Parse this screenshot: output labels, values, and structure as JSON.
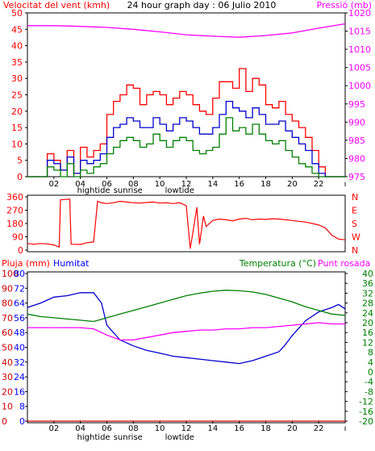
{
  "colors": {
    "wind": "#ff0000",
    "gust": "#cc0000",
    "wind_avg": "#0000cc",
    "wind_low": "#008000",
    "pressure": "#ff00ff",
    "direction": "#ff0000",
    "rain": "#cc0000",
    "humidity": "#0000cc",
    "temperature": "#008000",
    "dewpoint": "#ff00ff",
    "title": "#000000",
    "axis_left1": "#ff0000",
    "axis_right1": "#ff00ff",
    "axis_left3": "#0000ff",
    "axis_right3": "#008000"
  },
  "header": {
    "left": "Velocitat del vent (kmh)",
    "center": "24 hour graph day : 06 Julio 2010",
    "right": "Pressió (mb)"
  },
  "panel3_header": {
    "rain": "Pluja (mm)",
    "humidity": "Humitat",
    "temperature": "Temperatura (°C)",
    "dewpoint": "Punt rosada"
  },
  "chart_data": [
    {
      "type": "line",
      "title": "24 hour graph day : 06 Julio 2010",
      "ylabel": "Velocitat del vent (kmh)",
      "y2label": "Pressió (mb)",
      "xlim": [
        0,
        24
      ],
      "ylim": [
        0,
        50
      ],
      "y2lim": [
        975,
        1020
      ],
      "x_ticks": [
        "02",
        "04",
        "06",
        "08",
        "10",
        "12",
        "14",
        "16",
        "18",
        "20",
        "22"
      ],
      "y_ticks": [
        0,
        5,
        10,
        15,
        20,
        25,
        30,
        35,
        40,
        45,
        50
      ],
      "y2_ticks": [
        975,
        980,
        985,
        990,
        995,
        1000,
        1005,
        1010,
        1015,
        1020
      ],
      "annotations": [
        "hightide",
        "sunrise",
        "lowtide"
      ],
      "grid": false,
      "series": [
        {
          "name": "Pressió (mb)",
          "axis": "right",
          "x": [
            0,
            2,
            4,
            6,
            8,
            10,
            12,
            14,
            16,
            18,
            20,
            22,
            24
          ],
          "values": [
            1016.5,
            1016.5,
            1016.3,
            1016.0,
            1015.5,
            1014.8,
            1014.0,
            1013.6,
            1013.3,
            1013.8,
            1014.5,
            1015.8,
            1017.0
          ]
        },
        {
          "name": "Ràfega",
          "axis": "left",
          "x": [
            0,
            1.2,
            1.5,
            2.0,
            2.5,
            3.0,
            3.5,
            4.0,
            4.5,
            5.0,
            5.5,
            6.0,
            6.5,
            7.0,
            7.5,
            8.0,
            8.5,
            9.0,
            9.5,
            10.0,
            10.5,
            11.0,
            11.5,
            12.0,
            12.5,
            13.0,
            13.5,
            14.0,
            14.5,
            15.0,
            15.5,
            16.0,
            16.5,
            17.0,
            17.5,
            18.0,
            18.5,
            19.0,
            19.5,
            20.0,
            20.5,
            21.0,
            21.5,
            22.0,
            22.5,
            23.0,
            24.0
          ],
          "values": [
            0,
            0,
            7,
            5,
            2,
            8,
            1,
            9,
            6,
            8,
            10,
            19,
            23,
            25,
            28,
            27,
            22,
            25,
            26,
            25,
            22,
            24,
            26,
            25,
            22,
            20,
            19,
            24,
            29,
            29,
            27,
            33,
            26,
            30,
            28,
            22,
            21,
            23,
            19,
            17,
            15,
            12,
            8,
            3,
            0,
            0,
            0
          ]
        },
        {
          "name": "Vent mitjà",
          "axis": "left",
          "x": [
            0,
            1.2,
            1.5,
            2.0,
            2.5,
            3.0,
            3.5,
            4.0,
            4.5,
            5.0,
            5.5,
            6.0,
            6.5,
            7.0,
            7.5,
            8.0,
            8.5,
            9.0,
            9.5,
            10.0,
            10.5,
            11.0,
            11.5,
            12.0,
            12.5,
            13.0,
            13.5,
            14.0,
            14.5,
            15.0,
            15.5,
            16.0,
            16.5,
            17.0,
            17.5,
            18.0,
            18.5,
            19.0,
            19.5,
            20.0,
            20.5,
            21.0,
            21.5,
            22.0,
            22.5,
            23.0,
            24.0
          ],
          "values": [
            0,
            0,
            5,
            4,
            2,
            6,
            1,
            5,
            4,
            5,
            7,
            12,
            15,
            16,
            18,
            17,
            15,
            15,
            18,
            16,
            14,
            16,
            18,
            17,
            15,
            13,
            13,
            15,
            19,
            23,
            21,
            20,
            18,
            21,
            19,
            16,
            16,
            17,
            14,
            12,
            10,
            8,
            4,
            1,
            0,
            0,
            0
          ]
        },
        {
          "name": "Vent mínim",
          "axis": "left",
          "x": [
            0,
            1.2,
            1.5,
            2.0,
            2.5,
            3.0,
            3.5,
            4.0,
            4.5,
            5.0,
            5.5,
            6.0,
            6.5,
            7.0,
            7.5,
            8.0,
            8.5,
            9.0,
            9.5,
            10.0,
            10.5,
            11.0,
            11.5,
            12.0,
            12.5,
            13.0,
            13.5,
            14.0,
            14.5,
            15.0,
            15.5,
            16.0,
            16.5,
            17.0,
            17.5,
            18.0,
            18.5,
            19.0,
            19.5,
            20.0,
            20.5,
            21.0,
            21.5,
            22.0,
            22.5,
            23.0,
            24.0
          ],
          "values": [
            0,
            0,
            3,
            2,
            0,
            4,
            0,
            2,
            1,
            3,
            4,
            7,
            9,
            11,
            12,
            11,
            9,
            10,
            13,
            11,
            9,
            11,
            12,
            11,
            8,
            7,
            8,
            9,
            13,
            18,
            14,
            15,
            13,
            16,
            13,
            11,
            10,
            11,
            8,
            6,
            4,
            3,
            1,
            0,
            0,
            0,
            0
          ]
        }
      ]
    },
    {
      "type": "line",
      "ylim": [
        0,
        360
      ],
      "y_ticks": [
        0,
        90,
        180,
        270,
        360
      ],
      "y2_tick_labels": [
        "N",
        "W",
        "S",
        "E",
        "N"
      ],
      "series": [
        {
          "name": "Direcció del vent",
          "x": [
            0,
            0.5,
            1.0,
            1.5,
            2.0,
            2.4,
            2.5,
            3.2,
            3.3,
            4.0,
            4.5,
            5.0,
            5.3,
            5.6,
            6.0,
            6.5,
            7.0,
            7.5,
            8.0,
            8.5,
            9.0,
            9.5,
            10.0,
            10.5,
            11.0,
            11.5,
            12.0,
            12.3,
            12.5,
            12.8,
            13.0,
            13.3,
            13.5,
            14.0,
            14.5,
            15.0,
            15.5,
            16.0,
            16.5,
            17.0,
            17.5,
            18.0,
            18.5,
            19.0,
            19.5,
            20.0,
            20.5,
            21.0,
            21.5,
            22.0,
            22.5,
            23.0,
            23.5,
            24.0
          ],
          "values": [
            45,
            40,
            45,
            42,
            35,
            20,
            340,
            345,
            40,
            38,
            50,
            55,
            330,
            320,
            315,
            320,
            330,
            325,
            320,
            318,
            322,
            325,
            318,
            320,
            315,
            320,
            300,
            10,
            120,
            290,
            40,
            230,
            160,
            200,
            210,
            205,
            198,
            210,
            215,
            205,
            210,
            208,
            212,
            210,
            205,
            200,
            195,
            190,
            180,
            170,
            150,
            100,
            75,
            70
          ]
        }
      ]
    },
    {
      "type": "line",
      "ylabel": "Pluja (mm) / Humitat",
      "y2label": "Temperatura (°C) / Punt rosada",
      "ylim": [
        0,
        100
      ],
      "y_ticks": [
        0,
        10,
        20,
        30,
        40,
        50,
        60,
        70,
        80,
        90,
        100
      ],
      "y_ticks_humidity": [
        0,
        8,
        16,
        24,
        32,
        40,
        48,
        56,
        64,
        72,
        80
      ],
      "y_ticks_rain": [
        0,
        4,
        12,
        20,
        28,
        36
      ],
      "y2lim": [
        -20,
        40
      ],
      "y2_ticks": [
        -20,
        -16,
        -12,
        -8,
        -4,
        0,
        4,
        8,
        12,
        16,
        20,
        24,
        28,
        32,
        36,
        40
      ],
      "x_ticks": [
        "02",
        "04",
        "06",
        "08",
        "10",
        "12",
        "14",
        "16",
        "18",
        "20",
        "22"
      ],
      "annotations": [
        "hightide",
        "sunrise",
        "lowtide"
      ],
      "series": [
        {
          "name": "Humitat",
          "axis": "left",
          "x": [
            0,
            1,
            2,
            3,
            4,
            5,
            5.6,
            6,
            6.5,
            7,
            8,
            9,
            10,
            11,
            12,
            13,
            14,
            15,
            16,
            17,
            18,
            19,
            19.5,
            20,
            21,
            22,
            23,
            23.5,
            24
          ],
          "values": [
            77,
            80,
            84,
            85,
            87,
            87,
            80,
            65,
            60,
            55,
            51,
            48,
            46,
            44,
            43,
            42,
            41,
            40,
            39,
            41,
            44,
            47,
            52,
            58,
            68,
            74,
            77,
            79,
            76
          ]
        },
        {
          "name": "Temperatura",
          "axis": "right",
          "x": [
            0,
            1,
            2,
            3,
            4,
            5,
            6,
            7,
            8,
            9,
            10,
            11,
            12,
            13,
            14,
            15,
            16,
            17,
            18,
            19,
            20,
            21,
            22,
            23,
            24
          ],
          "values": [
            23.5,
            22.5,
            22,
            21.5,
            21,
            20.5,
            22,
            23.5,
            25,
            26.5,
            28,
            29.5,
            31,
            32,
            32.8,
            33.2,
            33,
            32.5,
            31.5,
            30,
            28.5,
            26.5,
            25,
            23.5,
            23
          ]
        },
        {
          "name": "Punt rosada",
          "axis": "right",
          "x": [
            0,
            1,
            2,
            3,
            4,
            5,
            6,
            7,
            8,
            9,
            10,
            11,
            12,
            13,
            14,
            15,
            16,
            17,
            18,
            19,
            20,
            21,
            22,
            23,
            24
          ],
          "values": [
            18,
            18,
            18,
            18,
            18,
            17.5,
            15,
            13,
            13,
            14,
            15,
            16,
            16.5,
            17,
            17,
            17.5,
            17.5,
            18,
            18,
            18.5,
            19,
            19.5,
            20,
            19.5,
            19.5
          ]
        },
        {
          "name": "Pluja",
          "axis": "left",
          "x": [
            0,
            24
          ],
          "values": [
            0,
            0
          ]
        }
      ]
    }
  ]
}
